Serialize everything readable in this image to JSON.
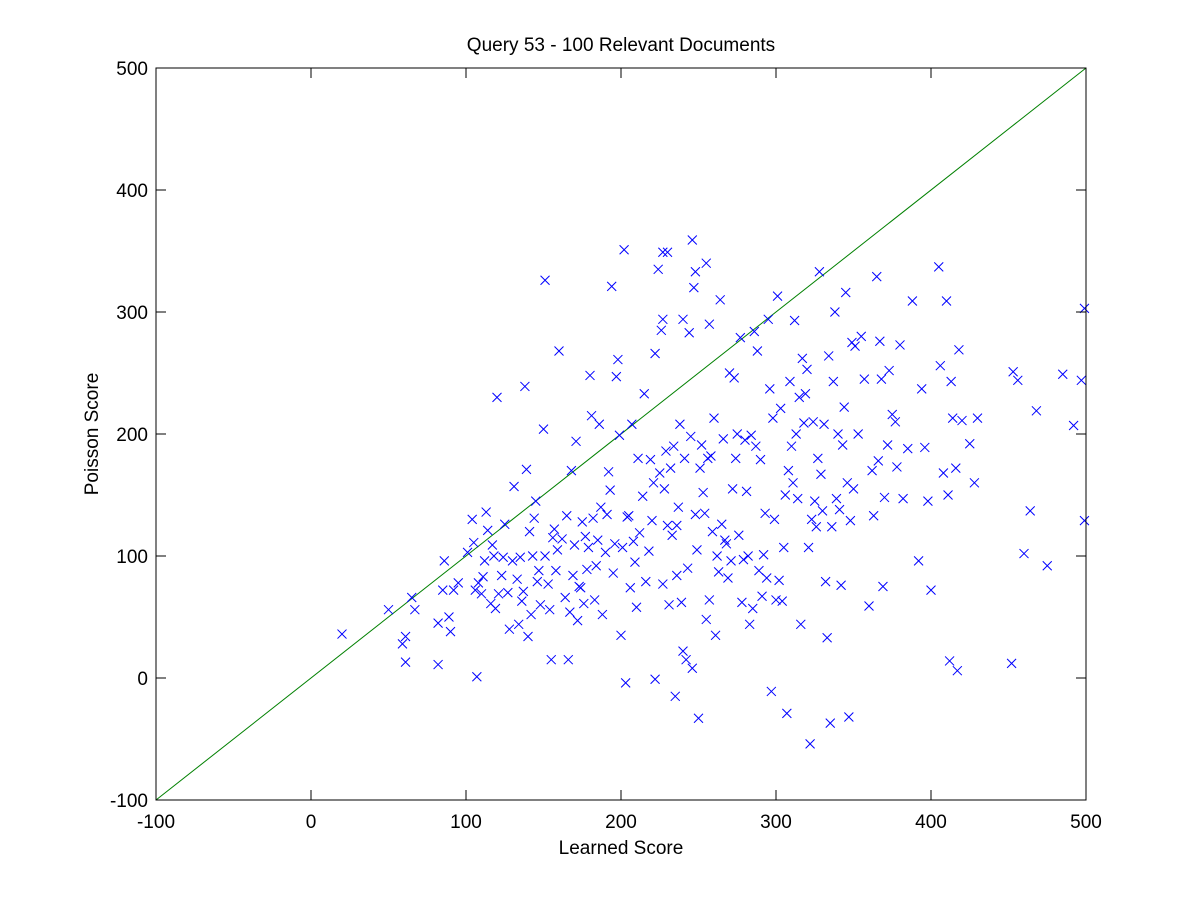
{
  "chart_data": {
    "type": "scatter",
    "title": "Query 53 - 100 Relevant Documents",
    "xlabel": "Learned Score",
    "ylabel": "Poisson Score",
    "xlim": [
      -100,
      500
    ],
    "ylim": [
      -100,
      500
    ],
    "xticks": [
      -100,
      0,
      100,
      200,
      300,
      400,
      500
    ],
    "yticks": [
      -100,
      0,
      100,
      200,
      300,
      400,
      500
    ],
    "grid": false,
    "marker": "x",
    "marker_color": "#0000ff",
    "reference_line": {
      "from": [
        -100,
        -100
      ],
      "to": [
        500,
        500
      ],
      "color": "#008000"
    },
    "points": [
      [
        20,
        36
      ],
      [
        50,
        56
      ],
      [
        59,
        28
      ],
      [
        61,
        34
      ],
      [
        61,
        13
      ],
      [
        65,
        66
      ],
      [
        67,
        56
      ],
      [
        82,
        45
      ],
      [
        82,
        11
      ],
      [
        85,
        72
      ],
      [
        86,
        96
      ],
      [
        89,
        50
      ],
      [
        90,
        38
      ],
      [
        92,
        72
      ],
      [
        95,
        78
      ],
      [
        101,
        103
      ],
      [
        104,
        130
      ],
      [
        105,
        111
      ],
      [
        106,
        72
      ],
      [
        107,
        1
      ],
      [
        108,
        78
      ],
      [
        110,
        69
      ],
      [
        111,
        83
      ],
      [
        112,
        96
      ],
      [
        113,
        136
      ],
      [
        114,
        121
      ],
      [
        116,
        61
      ],
      [
        117,
        109
      ],
      [
        118,
        100
      ],
      [
        119,
        57
      ],
      [
        120,
        230
      ],
      [
        121,
        69
      ],
      [
        123,
        84
      ],
      [
        124,
        99
      ],
      [
        125,
        126
      ],
      [
        127,
        70
      ],
      [
        128,
        40
      ],
      [
        130,
        96
      ],
      [
        131,
        157
      ],
      [
        133,
        81
      ],
      [
        134,
        44
      ],
      [
        135,
        99
      ],
      [
        136,
        63
      ],
      [
        137,
        71
      ],
      [
        138,
        239
      ],
      [
        139,
        171
      ],
      [
        140,
        34
      ],
      [
        141,
        120
      ],
      [
        142,
        52
      ],
      [
        143,
        100
      ],
      [
        144,
        131
      ],
      [
        145,
        145
      ],
      [
        146,
        79
      ],
      [
        147,
        88
      ],
      [
        148,
        60
      ],
      [
        150,
        204
      ],
      [
        151,
        326
      ],
      [
        151,
        100
      ],
      [
        153,
        77
      ],
      [
        154,
        56
      ],
      [
        155,
        15
      ],
      [
        156,
        115
      ],
      [
        157,
        122
      ],
      [
        158,
        88
      ],
      [
        159,
        105
      ],
      [
        160,
        268
      ],
      [
        162,
        114
      ],
      [
        164,
        66
      ],
      [
        165,
        133
      ],
      [
        166,
        15
      ],
      [
        167,
        54
      ],
      [
        168,
        170
      ],
      [
        169,
        84
      ],
      [
        170,
        109
      ],
      [
        171,
        194
      ],
      [
        172,
        47
      ],
      [
        173,
        75
      ],
      [
        174,
        74
      ],
      [
        175,
        128
      ],
      [
        176,
        61
      ],
      [
        177,
        116
      ],
      [
        178,
        89
      ],
      [
        179,
        107
      ],
      [
        180,
        248
      ],
      [
        181,
        215
      ],
      [
        182,
        131
      ],
      [
        183,
        64
      ],
      [
        184,
        92
      ],
      [
        185,
        113
      ],
      [
        186,
        208
      ],
      [
        187,
        140
      ],
      [
        188,
        52
      ],
      [
        190,
        103
      ],
      [
        191,
        134
      ],
      [
        192,
        169
      ],
      [
        193,
        154
      ],
      [
        194,
        321
      ],
      [
        195,
        86
      ],
      [
        196,
        110
      ],
      [
        197,
        247
      ],
      [
        198,
        261
      ],
      [
        199,
        199
      ],
      [
        200,
        35
      ],
      [
        201,
        107
      ],
      [
        202,
        351
      ],
      [
        203,
        -4
      ],
      [
        204,
        132
      ],
      [
        205,
        133
      ],
      [
        206,
        74
      ],
      [
        207,
        208
      ],
      [
        208,
        112
      ],
      [
        209,
        95
      ],
      [
        210,
        58
      ],
      [
        211,
        180
      ],
      [
        212,
        119
      ],
      [
        214,
        149
      ],
      [
        215,
        233
      ],
      [
        216,
        79
      ],
      [
        218,
        104
      ],
      [
        219,
        179
      ],
      [
        220,
        129
      ],
      [
        221,
        160
      ],
      [
        222,
        266
      ],
      [
        222,
        -1
      ],
      [
        224,
        335
      ],
      [
        225,
        168
      ],
      [
        226,
        285
      ],
      [
        227,
        349
      ],
      [
        227,
        294
      ],
      [
        227,
        77
      ],
      [
        228,
        155
      ],
      [
        229,
        186
      ],
      [
        230,
        349
      ],
      [
        230,
        125
      ],
      [
        231,
        60
      ],
      [
        232,
        172
      ],
      [
        233,
        117
      ],
      [
        234,
        190
      ],
      [
        235,
        -15
      ],
      [
        236,
        84
      ],
      [
        236,
        125
      ],
      [
        237,
        140
      ],
      [
        238,
        208
      ],
      [
        239,
        62
      ],
      [
        240,
        294
      ],
      [
        240,
        22
      ],
      [
        241,
        180
      ],
      [
        242,
        15
      ],
      [
        243,
        90
      ],
      [
        244,
        283
      ],
      [
        245,
        198
      ],
      [
        246,
        359
      ],
      [
        246,
        8
      ],
      [
        247,
        320
      ],
      [
        248,
        333
      ],
      [
        248,
        134
      ],
      [
        249,
        105
      ],
      [
        250,
        -33
      ],
      [
        251,
        172
      ],
      [
        252,
        191
      ],
      [
        253,
        152
      ],
      [
        254,
        135
      ],
      [
        255,
        340
      ],
      [
        255,
        48
      ],
      [
        256,
        180
      ],
      [
        257,
        290
      ],
      [
        257,
        64
      ],
      [
        258,
        182
      ],
      [
        259,
        120
      ],
      [
        260,
        213
      ],
      [
        261,
        35
      ],
      [
        262,
        100
      ],
      [
        263,
        87
      ],
      [
        264,
        310
      ],
      [
        265,
        126
      ],
      [
        266,
        196
      ],
      [
        267,
        113
      ],
      [
        268,
        110
      ],
      [
        269,
        82
      ],
      [
        270,
        250
      ],
      [
        271,
        96
      ],
      [
        272,
        155
      ],
      [
        273,
        246
      ],
      [
        274,
        180
      ],
      [
        275,
        200
      ],
      [
        276,
        117
      ],
      [
        277,
        279
      ],
      [
        278,
        62
      ],
      [
        279,
        97
      ],
      [
        280,
        195
      ],
      [
        281,
        153
      ],
      [
        282,
        100
      ],
      [
        283,
        44
      ],
      [
        284,
        199
      ],
      [
        285,
        57
      ],
      [
        286,
        284
      ],
      [
        287,
        190
      ],
      [
        288,
        268
      ],
      [
        289,
        88
      ],
      [
        290,
        179
      ],
      [
        291,
        67
      ],
      [
        292,
        101
      ],
      [
        293,
        135
      ],
      [
        294,
        82
      ],
      [
        295,
        294
      ],
      [
        296,
        237
      ],
      [
        297,
        -11
      ],
      [
        298,
        213
      ],
      [
        299,
        130
      ],
      [
        300,
        64
      ],
      [
        301,
        313
      ],
      [
        302,
        80
      ],
      [
        303,
        221
      ],
      [
        304,
        63
      ],
      [
        305,
        107
      ],
      [
        306,
        150
      ],
      [
        307,
        -29
      ],
      [
        308,
        170
      ],
      [
        309,
        243
      ],
      [
        310,
        190
      ],
      [
        311,
        160
      ],
      [
        312,
        293
      ],
      [
        313,
        200
      ],
      [
        314,
        147
      ],
      [
        315,
        230
      ],
      [
        316,
        44
      ],
      [
        317,
        262
      ],
      [
        318,
        209
      ],
      [
        319,
        233
      ],
      [
        320,
        253
      ],
      [
        321,
        107
      ],
      [
        322,
        -54
      ],
      [
        323,
        130
      ],
      [
        324,
        210
      ],
      [
        325,
        145
      ],
      [
        326,
        124
      ],
      [
        327,
        180
      ],
      [
        328,
        333
      ],
      [
        329,
        167
      ],
      [
        330,
        137
      ],
      [
        331,
        208
      ],
      [
        332,
        79
      ],
      [
        333,
        33
      ],
      [
        334,
        264
      ],
      [
        335,
        -37
      ],
      [
        336,
        124
      ],
      [
        337,
        243
      ],
      [
        338,
        300
      ],
      [
        339,
        147
      ],
      [
        340,
        200
      ],
      [
        341,
        138
      ],
      [
        342,
        76
      ],
      [
        343,
        191
      ],
      [
        344,
        222
      ],
      [
        345,
        316
      ],
      [
        346,
        160
      ],
      [
        347,
        -32
      ],
      [
        348,
        129
      ],
      [
        349,
        275
      ],
      [
        350,
        155
      ],
      [
        351,
        272
      ],
      [
        353,
        200
      ],
      [
        355,
        280
      ],
      [
        357,
        245
      ],
      [
        360,
        59
      ],
      [
        362,
        170
      ],
      [
        363,
        133
      ],
      [
        365,
        329
      ],
      [
        366,
        178
      ],
      [
        367,
        276
      ],
      [
        368,
        245
      ],
      [
        369,
        75
      ],
      [
        370,
        148
      ],
      [
        372,
        191
      ],
      [
        373,
        252
      ],
      [
        375,
        216
      ],
      [
        377,
        210
      ],
      [
        378,
        173
      ],
      [
        380,
        273
      ],
      [
        382,
        147
      ],
      [
        385,
        188
      ],
      [
        388,
        309
      ],
      [
        392,
        96
      ],
      [
        394,
        237
      ],
      [
        396,
        189
      ],
      [
        398,
        145
      ],
      [
        400,
        72
      ],
      [
        405,
        337
      ],
      [
        406,
        256
      ],
      [
        408,
        168
      ],
      [
        410,
        309
      ],
      [
        411,
        150
      ],
      [
        412,
        14
      ],
      [
        413,
        243
      ],
      [
        414,
        213
      ],
      [
        416,
        172
      ],
      [
        417,
        6
      ],
      [
        418,
        269
      ],
      [
        420,
        211
      ],
      [
        425,
        192
      ],
      [
        428,
        160
      ],
      [
        430,
        213
      ],
      [
        452,
        12
      ],
      [
        453,
        251
      ],
      [
        456,
        244
      ],
      [
        460,
        102
      ],
      [
        464,
        137
      ],
      [
        468,
        219
      ],
      [
        475,
        92
      ],
      [
        485,
        249
      ],
      [
        492,
        207
      ],
      [
        497,
        244
      ],
      [
        499,
        303
      ],
      [
        499,
        129
      ]
    ]
  }
}
